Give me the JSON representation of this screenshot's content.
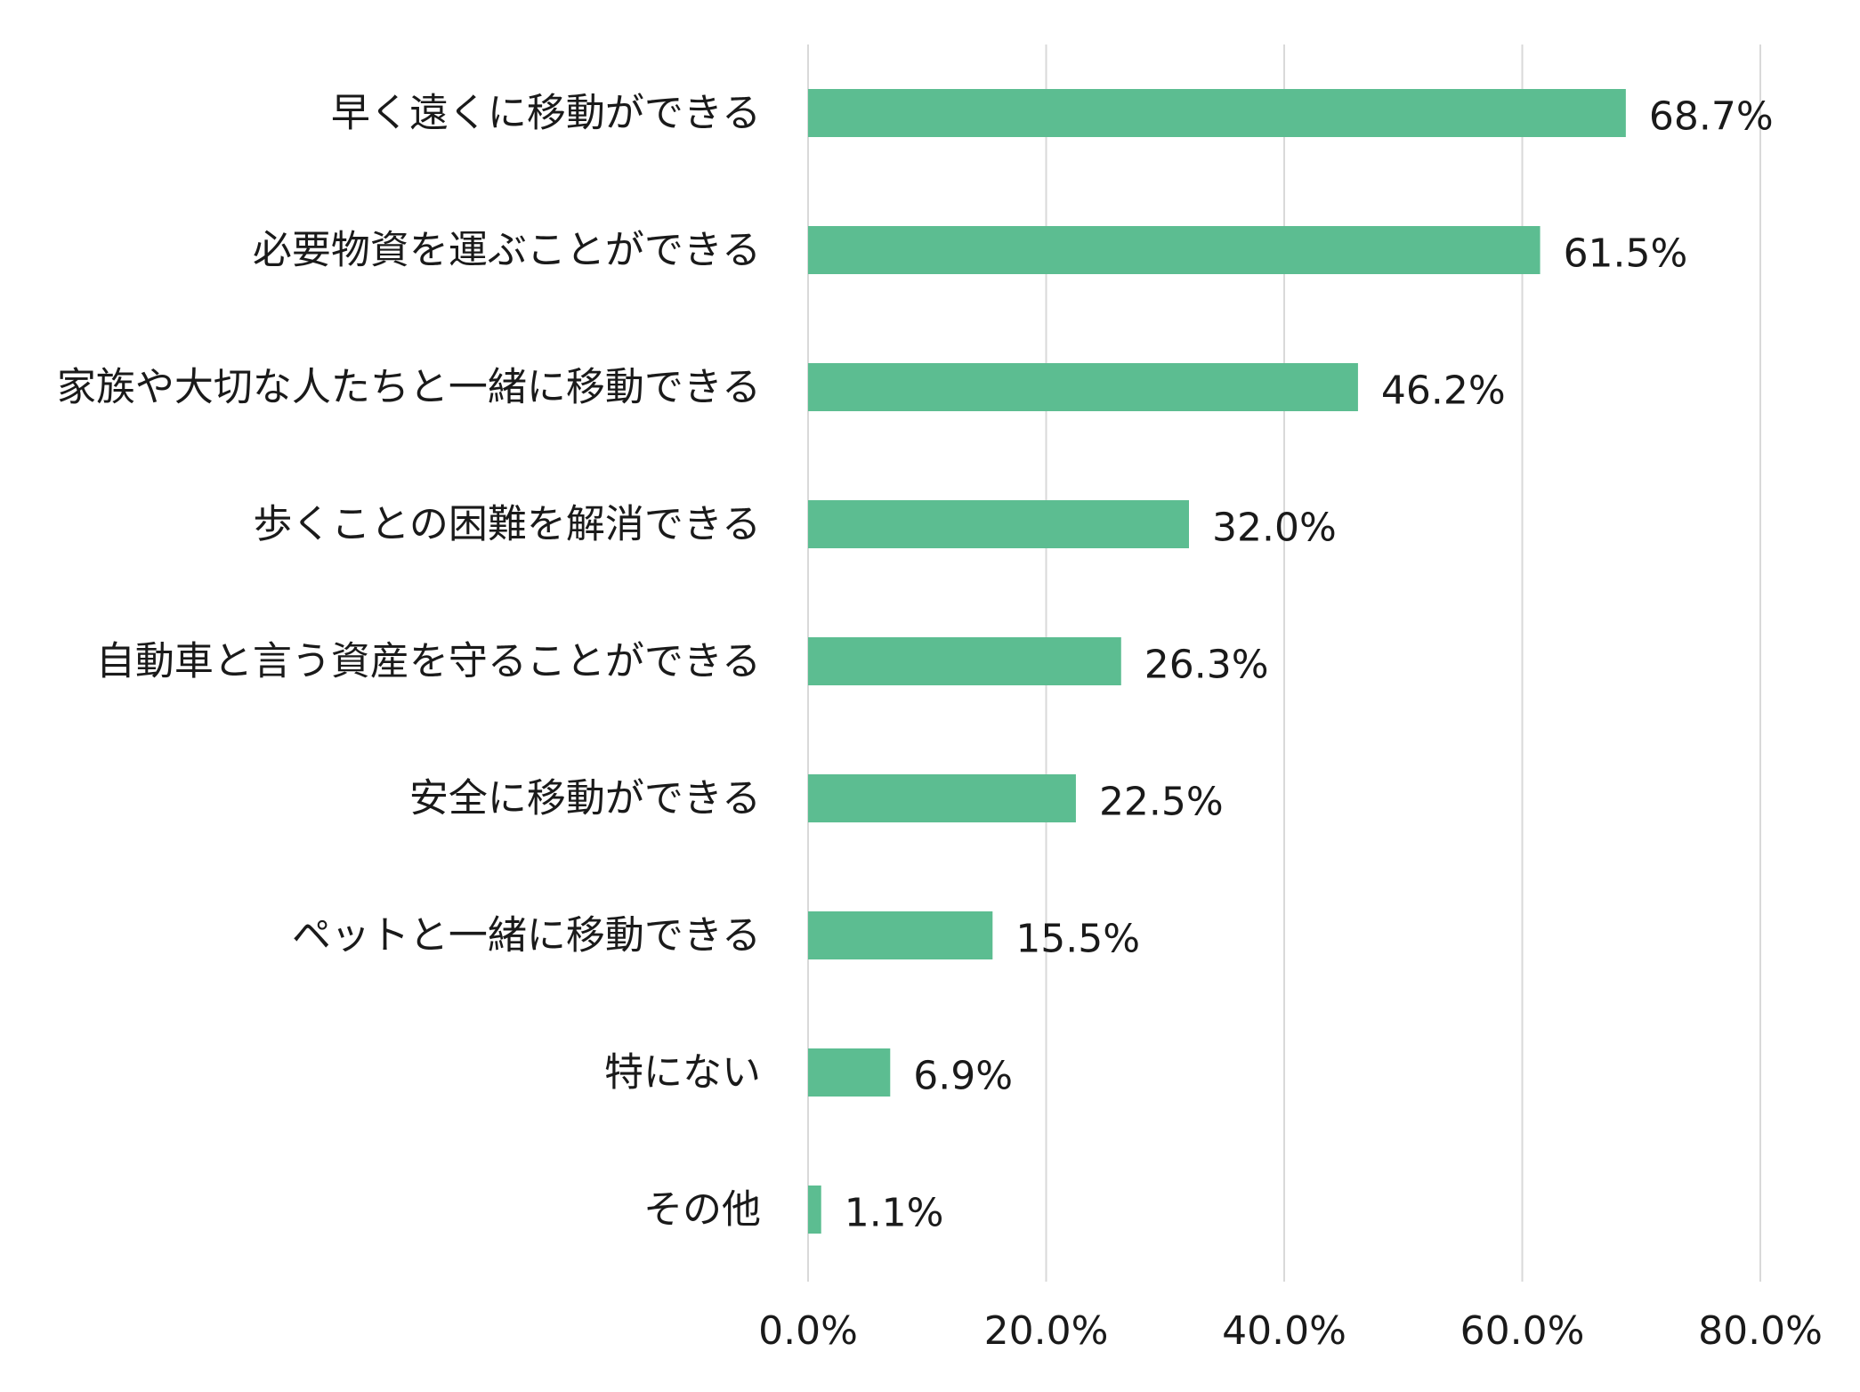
{
  "colors": {
    "bar": "#5cbd91",
    "grid": "#d9d9d9",
    "text": "#1a1a1a",
    "background": "#ffffff"
  },
  "chart_data": {
    "type": "bar",
    "orientation": "horizontal",
    "categories": [
      "早く遠くに移動ができる",
      "必要物資を運ぶことができる",
      "家族や大切な人たちと一緒に移動できる",
      "歩くことの困難を解消できる",
      "自動車と言う資産を守ることができる",
      "安全に移動ができる",
      "ペットと一緒に移動できる",
      "特にない",
      "その他"
    ],
    "values": [
      68.7,
      61.5,
      46.2,
      32.0,
      26.3,
      22.5,
      15.5,
      6.9,
      1.1
    ],
    "value_labels": [
      "68.7%",
      "61.5%",
      "46.2%",
      "32.0%",
      "26.3%",
      "22.5%",
      "15.5%",
      "6.9%",
      "1.1%"
    ],
    "xlim": [
      0,
      80
    ],
    "xticks": [
      0,
      20,
      40,
      60,
      80
    ],
    "xtick_labels": [
      "0.0%",
      "20.0%",
      "40.0%",
      "60.0%",
      "80.0%"
    ],
    "grid": "vertical",
    "legend": "none"
  }
}
